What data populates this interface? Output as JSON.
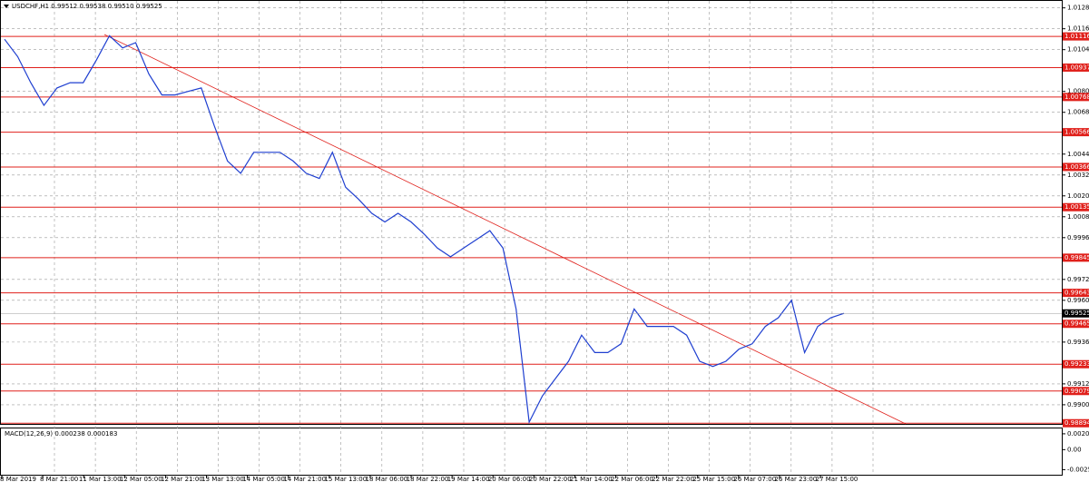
{
  "chart_data": {
    "type": "line",
    "title": "USDCHF,H1  0.99512 0.99538 0.99510 0.99525",
    "series": [
      {
        "name": "USDCHF,H1",
        "color": "#1f3fd0",
        "values": [
          1.011,
          1.01,
          1.0085,
          1.0072,
          1.0082,
          1.0085,
          1.0085,
          1.0098,
          1.0112,
          1.0105,
          1.0108,
          1.009,
          1.0078,
          1.0078,
          1.008,
          1.0082,
          1.006,
          1.004,
          1.0033,
          1.0045,
          1.0045,
          1.0045,
          1.004,
          1.0033,
          1.003,
          1.0045,
          1.0025,
          1.0018,
          1.001,
          1.0005,
          1.001,
          1.0005,
          0.9998,
          0.999,
          0.9985,
          0.999,
          0.9995,
          1.0,
          0.999,
          0.9955,
          0.989,
          0.9905,
          0.9915,
          0.9925,
          0.994,
          0.993,
          0.993,
          0.9935,
          0.9955,
          0.9945,
          0.9945,
          0.9945,
          0.994,
          0.9925,
          0.9922,
          0.9925,
          0.9932,
          0.9935,
          0.9945,
          0.995,
          0.996,
          0.993,
          0.9945,
          0.995,
          0.99525
        ]
      }
    ],
    "xticks": [
      "8 Mar 2019",
      "8 Mar 21:00",
      "11 Mar 13:00",
      "12 Mar 05:00",
      "12 Mar 21:00",
      "13 Mar 13:00",
      "14 Mar 05:00",
      "14 Mar 21:00",
      "15 Mar 13:00",
      "18 Mar 06:00",
      "18 Mar 22:00",
      "19 Mar 14:00",
      "20 Mar 06:00",
      "20 Mar 22:00",
      "21 Mar 14:00",
      "22 Mar 06:00",
      "22 Mar 22:00",
      "25 Mar 15:00",
      "26 Mar 07:00",
      "26 Mar 23:00",
      "27 Mar 15:00"
    ],
    "ylim": [
      0.9889,
      1.0132
    ],
    "yticks": [
      {
        "value": 1.0128,
        "label": "1.01280"
      },
      {
        "value": 1.0116,
        "label": "1.01160"
      },
      {
        "value": 1.0104,
        "label": "1.01040"
      },
      {
        "value": 1.008,
        "label": "1.00800"
      },
      {
        "value": 1.0068,
        "label": "1.00680"
      },
      {
        "value": 1.0044,
        "label": "1.00440"
      },
      {
        "value": 1.0032,
        "label": "1.00320"
      },
      {
        "value": 1.002,
        "label": "1.00200"
      },
      {
        "value": 1.0008,
        "label": "1.00080"
      },
      {
        "value": 0.9996,
        "label": "0.99960"
      },
      {
        "value": 0.9972,
        "label": "0.99720"
      },
      {
        "value": 0.996,
        "label": "0.99600"
      },
      {
        "value": 0.9936,
        "label": "0.99360"
      },
      {
        "value": 0.9912,
        "label": "0.99120"
      },
      {
        "value": 0.99,
        "label": "0.99000"
      }
    ],
    "levels": [
      1.01116,
      1.00937,
      1.00768,
      1.00566,
      1.00366,
      1.00135,
      0.99845,
      0.99643,
      0.99465,
      0.99233,
      0.99079,
      0.98894
    ],
    "level_color": "#e0201b",
    "current_price": 0.99525,
    "grid": true,
    "macd": {
      "title": "MACD(12,26,9) 0.000238 0.000183",
      "ylim": [
        -0.003,
        0.0025
      ],
      "yticks": [
        {
          "value": 0.002043,
          "label": "0.002043"
        },
        {
          "value": 0,
          "label": "0.00"
        },
        {
          "value": -0.002583,
          "label": "-0.002583"
        }
      ]
    }
  }
}
